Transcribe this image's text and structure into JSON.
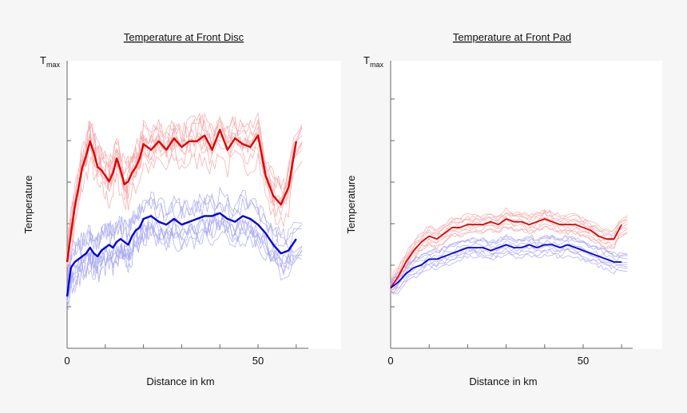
{
  "chart_data": [
    {
      "type": "line",
      "title": "Temperature at Front Disc",
      "xlabel": "Distance in km",
      "ylabel": "Temperature",
      "y_top_label_main": "T",
      "y_top_label_sub": "max",
      "xticks": [
        0,
        50
      ],
      "xlim": [
        0,
        63
      ],
      "ylim": [
        0,
        1
      ],
      "grid": false,
      "series": [
        {
          "color": "#e00000",
          "x": [
            0,
            1,
            2,
            3,
            4,
            5,
            6,
            7,
            8,
            9,
            10,
            11,
            12,
            13,
            14,
            15,
            16,
            17,
            18,
            19,
            20,
            22,
            24,
            26,
            28,
            30,
            32,
            34,
            36,
            38,
            40,
            42,
            44,
            46,
            48,
            50,
            52,
            54,
            56,
            58,
            60
          ],
          "y": [
            0.3,
            0.4,
            0.49,
            0.56,
            0.63,
            0.67,
            0.72,
            0.68,
            0.63,
            0.62,
            0.6,
            0.58,
            0.61,
            0.66,
            0.62,
            0.57,
            0.58,
            0.61,
            0.63,
            0.66,
            0.71,
            0.69,
            0.72,
            0.69,
            0.73,
            0.7,
            0.72,
            0.72,
            0.74,
            0.69,
            0.76,
            0.69,
            0.73,
            0.71,
            0.7,
            0.74,
            0.6,
            0.53,
            0.5,
            0.56,
            0.72
          ]
        },
        {
          "color": "#0000dd",
          "x": [
            0,
            1,
            2,
            3,
            4,
            5,
            6,
            7,
            8,
            9,
            10,
            11,
            12,
            13,
            14,
            15,
            16,
            17,
            18,
            19,
            20,
            22,
            24,
            26,
            28,
            30,
            32,
            34,
            36,
            38,
            40,
            42,
            44,
            46,
            48,
            50,
            52,
            54,
            56,
            58,
            60
          ],
          "y": [
            0.18,
            0.28,
            0.3,
            0.31,
            0.32,
            0.33,
            0.35,
            0.33,
            0.32,
            0.34,
            0.35,
            0.36,
            0.35,
            0.37,
            0.38,
            0.37,
            0.36,
            0.39,
            0.41,
            0.42,
            0.45,
            0.46,
            0.44,
            0.43,
            0.45,
            0.43,
            0.44,
            0.45,
            0.46,
            0.46,
            0.47,
            0.45,
            0.44,
            0.46,
            0.45,
            0.43,
            0.4,
            0.36,
            0.33,
            0.34,
            0.38
          ]
        }
      ]
    },
    {
      "type": "line",
      "title": "Temperature at Front Pad",
      "xlabel": "Distance in km",
      "ylabel": "Temperature",
      "y_top_label_main": "T",
      "y_top_label_sub": "max",
      "xticks": [
        0,
        50
      ],
      "xlim": [
        0,
        63
      ],
      "ylim": [
        0,
        1
      ],
      "grid": false,
      "series": [
        {
          "color": "#e00000",
          "x": [
            0,
            2,
            4,
            6,
            8,
            10,
            12,
            14,
            16,
            18,
            20,
            22,
            24,
            26,
            28,
            30,
            32,
            34,
            36,
            38,
            40,
            42,
            44,
            46,
            48,
            50,
            52,
            54,
            56,
            58,
            60
          ],
          "y": [
            0.21,
            0.25,
            0.3,
            0.34,
            0.37,
            0.39,
            0.38,
            0.4,
            0.42,
            0.42,
            0.43,
            0.43,
            0.43,
            0.44,
            0.43,
            0.45,
            0.44,
            0.44,
            0.43,
            0.44,
            0.45,
            0.44,
            0.43,
            0.43,
            0.43,
            0.42,
            0.41,
            0.39,
            0.38,
            0.38,
            0.43
          ]
        },
        {
          "color": "#0000dd",
          "x": [
            0,
            2,
            4,
            6,
            8,
            10,
            12,
            14,
            16,
            18,
            20,
            22,
            24,
            26,
            28,
            30,
            32,
            34,
            36,
            38,
            40,
            42,
            44,
            46,
            48,
            50,
            52,
            54,
            56,
            58,
            60
          ],
          "y": [
            0.21,
            0.23,
            0.26,
            0.28,
            0.29,
            0.31,
            0.31,
            0.32,
            0.33,
            0.34,
            0.35,
            0.35,
            0.35,
            0.34,
            0.35,
            0.36,
            0.35,
            0.35,
            0.36,
            0.35,
            0.36,
            0.36,
            0.35,
            0.36,
            0.35,
            0.34,
            0.33,
            0.32,
            0.31,
            0.3,
            0.3
          ]
        }
      ]
    }
  ]
}
